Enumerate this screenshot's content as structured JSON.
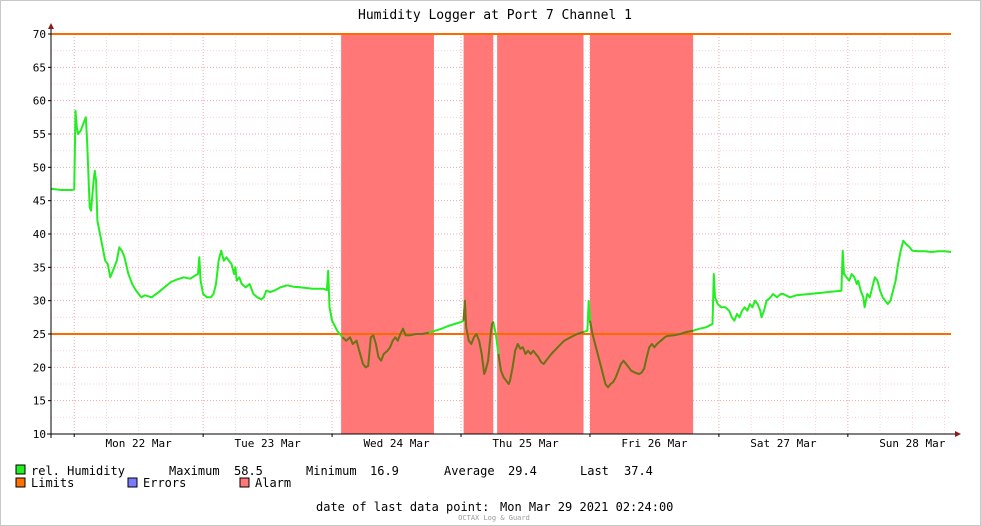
{
  "chart_data": {
    "type": "line",
    "title": "Humidity Logger at Port 7 Channel 1",
    "x_tick_labels": [
      "Mon 22 Mar",
      "Tue 23 Mar",
      "Wed 24 Mar",
      "Thu 25 Mar",
      "Fri 26 Mar",
      "Sat 27 Mar",
      "Sun 28 Mar"
    ],
    "x_unit": "days since Sun 21 Mar 2021 00:00",
    "xlim": [
      0.82,
      7.8
    ],
    "ylim": [
      10,
      70
    ],
    "y_ticks": [
      10,
      15,
      20,
      25,
      30,
      35,
      40,
      45,
      50,
      55,
      60,
      65,
      70
    ],
    "grid": true,
    "limits": [
      {
        "name": "upper limit",
        "value": 70
      },
      {
        "name": "lower limit",
        "value": 25
      }
    ],
    "alarm_periods": [
      [
        3.07,
        3.79
      ],
      [
        4.02,
        4.25
      ],
      [
        4.28,
        4.95
      ],
      [
        5.0,
        5.8
      ]
    ],
    "series": [
      {
        "name": "rel. Humidity",
        "color": "#22ee22",
        "points": [
          [
            0.82,
            46.8
          ],
          [
            0.9,
            46.6
          ],
          [
            0.98,
            46.6
          ],
          [
            1.0,
            46.7
          ],
          [
            1.01,
            58.5
          ],
          [
            1.02,
            56.0
          ],
          [
            1.03,
            55.0
          ],
          [
            1.05,
            55.5
          ],
          [
            1.07,
            56.5
          ],
          [
            1.09,
            57.5
          ],
          [
            1.1,
            54.0
          ],
          [
            1.12,
            44.0
          ],
          [
            1.13,
            43.5
          ],
          [
            1.15,
            48.0
          ],
          [
            1.16,
            49.5
          ],
          [
            1.17,
            48.0
          ],
          [
            1.18,
            42.0
          ],
          [
            1.21,
            39.0
          ],
          [
            1.24,
            36.0
          ],
          [
            1.26,
            35.5
          ],
          [
            1.28,
            33.5
          ],
          [
            1.3,
            34.5
          ],
          [
            1.33,
            36.0
          ],
          [
            1.35,
            38.0
          ],
          [
            1.37,
            37.5
          ],
          [
            1.39,
            36.5
          ],
          [
            1.42,
            34.0
          ],
          [
            1.45,
            32.5
          ],
          [
            1.48,
            31.5
          ],
          [
            1.5,
            31.0
          ],
          [
            1.52,
            30.5
          ],
          [
            1.55,
            30.8
          ],
          [
            1.6,
            30.5
          ],
          [
            1.65,
            31.2
          ],
          [
            1.7,
            32.0
          ],
          [
            1.75,
            32.8
          ],
          [
            1.8,
            33.2
          ],
          [
            1.85,
            33.5
          ],
          [
            1.9,
            33.3
          ],
          [
            1.94,
            33.8
          ],
          [
            1.96,
            34.0
          ],
          [
            1.97,
            36.5
          ],
          [
            1.98,
            33.0
          ],
          [
            2.0,
            31.0
          ],
          [
            2.03,
            30.5
          ],
          [
            2.06,
            30.5
          ],
          [
            2.08,
            31.0
          ],
          [
            2.1,
            32.5
          ],
          [
            2.12,
            36.0
          ],
          [
            2.14,
            37.5
          ],
          [
            2.16,
            36.0
          ],
          [
            2.18,
            36.5
          ],
          [
            2.2,
            36.0
          ],
          [
            2.22,
            35.5
          ],
          [
            2.24,
            34.0
          ],
          [
            2.25,
            35.0
          ],
          [
            2.26,
            33.0
          ],
          [
            2.28,
            33.5
          ],
          [
            2.3,
            32.5
          ],
          [
            2.33,
            32.0
          ],
          [
            2.36,
            32.5
          ],
          [
            2.39,
            31.0
          ],
          [
            2.42,
            30.5
          ],
          [
            2.45,
            30.2
          ],
          [
            2.47,
            30.5
          ],
          [
            2.49,
            31.5
          ],
          [
            2.52,
            31.3
          ],
          [
            2.55,
            31.5
          ],
          [
            2.6,
            32.0
          ],
          [
            2.65,
            32.3
          ],
          [
            2.7,
            32.1
          ],
          [
            2.75,
            32.0
          ],
          [
            2.85,
            31.8
          ],
          [
            2.93,
            31.8
          ],
          [
            2.96,
            31.6
          ],
          [
            2.97,
            34.5
          ],
          [
            2.98,
            29.0
          ],
          [
            3.0,
            27.0
          ],
          [
            3.04,
            25.5
          ],
          [
            3.08,
            24.5
          ],
          [
            3.11,
            24.0
          ],
          [
            3.14,
            24.5
          ],
          [
            3.16,
            23.5
          ],
          [
            3.19,
            24.0
          ],
          [
            3.21,
            22.5
          ],
          [
            3.24,
            20.5
          ],
          [
            3.26,
            20.0
          ],
          [
            3.28,
            20.2
          ],
          [
            3.3,
            24.5
          ],
          [
            3.32,
            24.8
          ],
          [
            3.34,
            23.5
          ],
          [
            3.36,
            21.5
          ],
          [
            3.38,
            21.0
          ],
          [
            3.4,
            22.0
          ],
          [
            3.43,
            22.5
          ],
          [
            3.45,
            23.0
          ],
          [
            3.47,
            24.0
          ],
          [
            3.49,
            24.5
          ],
          [
            3.51,
            24.0
          ],
          [
            3.53,
            25.0
          ],
          [
            3.55,
            25.8
          ],
          [
            3.57,
            24.8
          ],
          [
            3.6,
            24.8
          ],
          [
            3.65,
            25.0
          ],
          [
            3.7,
            25.0
          ],
          [
            3.75,
            25.2
          ],
          [
            3.8,
            25.5
          ],
          [
            3.85,
            25.8
          ],
          [
            3.9,
            26.2
          ],
          [
            3.95,
            26.5
          ],
          [
            4.0,
            26.8
          ],
          [
            4.02,
            27.0
          ],
          [
            4.03,
            30.0
          ],
          [
            4.04,
            26.0
          ],
          [
            4.06,
            24.0
          ],
          [
            4.08,
            23.5
          ],
          [
            4.1,
            24.5
          ],
          [
            4.12,
            25.0
          ],
          [
            4.14,
            24.0
          ],
          [
            4.16,
            22.0
          ],
          [
            4.18,
            19.0
          ],
          [
            4.19,
            19.5
          ],
          [
            4.21,
            21.0
          ],
          [
            4.23,
            25.0
          ],
          [
            4.24,
            26.5
          ],
          [
            4.25,
            26.8
          ],
          [
            4.27,
            25.0
          ],
          [
            4.29,
            22.0
          ],
          [
            4.31,
            19.5
          ],
          [
            4.33,
            18.5
          ],
          [
            4.35,
            18.0
          ],
          [
            4.37,
            17.5
          ],
          [
            4.38,
            18.0
          ],
          [
            4.4,
            20.0
          ],
          [
            4.42,
            22.5
          ],
          [
            4.44,
            23.5
          ],
          [
            4.46,
            22.8
          ],
          [
            4.48,
            23.0
          ],
          [
            4.5,
            22.0
          ],
          [
            4.52,
            22.5
          ],
          [
            4.54,
            22.0
          ],
          [
            4.56,
            22.5
          ],
          [
            4.58,
            22.0
          ],
          [
            4.6,
            21.5
          ],
          [
            4.62,
            20.8
          ],
          [
            4.64,
            20.5
          ],
          [
            4.66,
            21.0
          ],
          [
            4.7,
            22.0
          ],
          [
            4.75,
            23.0
          ],
          [
            4.8,
            24.0
          ],
          [
            4.85,
            24.5
          ],
          [
            4.9,
            25.0
          ],
          [
            4.95,
            25.3
          ],
          [
            4.98,
            25.5
          ],
          [
            4.99,
            30.0
          ],
          [
            5.0,
            27.0
          ],
          [
            5.02,
            25.0
          ],
          [
            5.04,
            23.5
          ],
          [
            5.06,
            22.0
          ],
          [
            5.08,
            20.5
          ],
          [
            5.1,
            19.0
          ],
          [
            5.12,
            17.5
          ],
          [
            5.14,
            17.0
          ],
          [
            5.16,
            17.5
          ],
          [
            5.18,
            17.8
          ],
          [
            5.2,
            18.5
          ],
          [
            5.22,
            19.5
          ],
          [
            5.24,
            20.5
          ],
          [
            5.26,
            21.0
          ],
          [
            5.28,
            20.5
          ],
          [
            5.3,
            20.0
          ],
          [
            5.32,
            19.5
          ],
          [
            5.35,
            19.2
          ],
          [
            5.38,
            19.0
          ],
          [
            5.4,
            19.2
          ],
          [
            5.42,
            19.8
          ],
          [
            5.44,
            21.5
          ],
          [
            5.46,
            23.0
          ],
          [
            5.48,
            23.5
          ],
          [
            5.5,
            23.0
          ],
          [
            5.52,
            23.5
          ],
          [
            5.55,
            24.0
          ],
          [
            5.58,
            24.5
          ],
          [
            5.6,
            24.7
          ],
          [
            5.65,
            24.8
          ],
          [
            5.7,
            25.0
          ],
          [
            5.75,
            25.3
          ],
          [
            5.8,
            25.5
          ],
          [
            5.85,
            25.8
          ],
          [
            5.9,
            26.0
          ],
          [
            5.93,
            26.3
          ],
          [
            5.95,
            26.5
          ],
          [
            5.96,
            34.0
          ],
          [
            5.97,
            30.5
          ],
          [
            5.99,
            29.5
          ],
          [
            6.02,
            29.0
          ],
          [
            6.05,
            29.0
          ],
          [
            6.08,
            28.5
          ],
          [
            6.1,
            27.5
          ],
          [
            6.12,
            27.0
          ],
          [
            6.14,
            28.0
          ],
          [
            6.16,
            27.5
          ],
          [
            6.18,
            28.5
          ],
          [
            6.2,
            29.0
          ],
          [
            6.22,
            28.5
          ],
          [
            6.24,
            29.5
          ],
          [
            6.26,
            29.0
          ],
          [
            6.28,
            30.0
          ],
          [
            6.3,
            29.5
          ],
          [
            6.32,
            28.5
          ],
          [
            6.33,
            27.5
          ],
          [
            6.35,
            28.5
          ],
          [
            6.37,
            30.0
          ],
          [
            6.4,
            30.5
          ],
          [
            6.42,
            31.0
          ],
          [
            6.45,
            30.5
          ],
          [
            6.48,
            31.0
          ],
          [
            6.5,
            31.0
          ],
          [
            6.55,
            30.5
          ],
          [
            6.6,
            30.8
          ],
          [
            6.7,
            31.0
          ],
          [
            6.8,
            31.2
          ],
          [
            6.85,
            31.3
          ],
          [
            6.95,
            31.5
          ],
          [
            6.96,
            37.5
          ],
          [
            6.97,
            34.0
          ],
          [
            6.99,
            33.5
          ],
          [
            7.01,
            33.0
          ],
          [
            7.03,
            34.0
          ],
          [
            7.05,
            33.5
          ],
          [
            7.07,
            32.5
          ],
          [
            7.08,
            33.0
          ],
          [
            7.1,
            31.5
          ],
          [
            7.12,
            30.5
          ],
          [
            7.13,
            29.0
          ],
          [
            7.15,
            31.0
          ],
          [
            7.17,
            30.5
          ],
          [
            7.19,
            32.0
          ],
          [
            7.21,
            33.5
          ],
          [
            7.23,
            33.0
          ],
          [
            7.25,
            31.5
          ],
          [
            7.27,
            30.5
          ],
          [
            7.29,
            30.0
          ],
          [
            7.31,
            29.5
          ],
          [
            7.33,
            30.0
          ],
          [
            7.35,
            31.5
          ],
          [
            7.37,
            33.0
          ],
          [
            7.39,
            35.5
          ],
          [
            7.41,
            37.5
          ],
          [
            7.43,
            39.0
          ],
          [
            7.45,
            38.5
          ],
          [
            7.48,
            38.0
          ],
          [
            7.5,
            37.5
          ],
          [
            7.55,
            37.4
          ],
          [
            7.6,
            37.4
          ],
          [
            7.65,
            37.3
          ],
          [
            7.7,
            37.4
          ],
          [
            7.75,
            37.4
          ],
          [
            7.8,
            37.3
          ]
        ]
      }
    ]
  },
  "legend": {
    "humidity_label": "rel. Humidity",
    "maximum_label": "Maximum",
    "maximum_value": "58.5",
    "minimum_label": "Minimum",
    "minimum_value": "16.9",
    "average_label": "Average",
    "average_value": "29.4",
    "last_label": "Last",
    "last_value": "37.4",
    "limits_label": "Limits",
    "errors_label": "Errors",
    "alarm_label": "Alarm",
    "colors": {
      "humidity": "#22ee22",
      "limits": "#ff7000",
      "errors": "#7a7aff",
      "alarm": "#ff7777"
    }
  },
  "footer": {
    "last_point_label": "date of last data point:",
    "last_point_value": "Mon Mar 29 2021 02:24:00",
    "watermark": "OCTAX Log & Guard"
  }
}
